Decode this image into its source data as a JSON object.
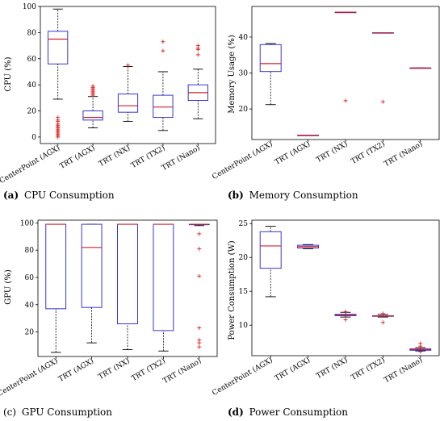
{
  "chart_data": [
    {
      "type": "box",
      "panel_letter": "(a)",
      "caption": "CPU Consumption",
      "ylabel": "CPU (%)",
      "ylim": [
        -5,
        100
      ],
      "yticks": [
        0,
        20,
        40,
        60,
        80,
        100
      ],
      "categories": [
        "CenterPoint (AGX)",
        "TRT (AGX)",
        "TRT (NX)",
        "TRT (TX2)",
        "TRT (Nano)"
      ],
      "boxes": [
        {
          "whislo": 29,
          "q1": 56,
          "med": 75,
          "q3": 81,
          "whishi": 98,
          "fliers": [
            0,
            1,
            2,
            3,
            4,
            5,
            6,
            7,
            8,
            9,
            10,
            12,
            13,
            15
          ]
        },
        {
          "whislo": 7,
          "q1": 13,
          "med": 15,
          "q3": 20,
          "whishi": 31,
          "fliers": [
            32,
            33,
            34,
            35,
            36,
            37,
            38,
            39
          ]
        },
        {
          "whislo": 12,
          "q1": 19,
          "med": 24,
          "q3": 33,
          "whishi": 54,
          "fliers": [
            55
          ]
        },
        {
          "whislo": 5,
          "q1": 15,
          "med": 23,
          "q3": 32,
          "whishi": 50,
          "fliers": [
            66,
            73
          ]
        },
        {
          "whislo": 14,
          "q1": 28,
          "med": 34,
          "q3": 40,
          "whishi": 52,
          "fliers": [
            63,
            67,
            68,
            70
          ]
        }
      ]
    },
    {
      "type": "box",
      "panel_letter": "(b)",
      "caption": "Memory Consumption",
      "ylabel": "Memory Usage (%)",
      "ylim": [
        11.5,
        48.5
      ],
      "yticks": [
        20,
        30,
        40
      ],
      "categories": [
        "CenterPoint (AGX)",
        "TRT (AGX)",
        "TRT (NX)",
        "TRT (TX2)",
        "TRT (Nano)"
      ],
      "boxes": [
        {
          "whislo": 21.2,
          "q1": 30.4,
          "med": 32.6,
          "q3": 37.9,
          "whishi": 38.2,
          "fliers": []
        },
        {
          "whislo": 12.7,
          "q1": 12.7,
          "med": 12.7,
          "q3": 12.7,
          "whishi": 12.7,
          "fliers": []
        },
        {
          "whislo": 46.9,
          "q1": 46.9,
          "med": 46.9,
          "q3": 46.9,
          "whishi": 46.9,
          "fliers": [
            22.3
          ]
        },
        {
          "whislo": 41.2,
          "q1": 41.2,
          "med": 41.2,
          "q3": 41.2,
          "whishi": 41.2,
          "fliers": [
            22.0
          ]
        },
        {
          "whislo": 31.4,
          "q1": 31.4,
          "med": 31.4,
          "q3": 31.4,
          "whishi": 31.4,
          "fliers": []
        }
      ]
    },
    {
      "type": "box",
      "panel_letter": "(c)",
      "caption": "GPU Consumption",
      "ylabel": "GPU (%)",
      "ylim": [
        2,
        102
      ],
      "yticks": [
        20,
        40,
        60,
        80,
        100
      ],
      "categories": [
        "CenterPoint (AGX)",
        "TRT (AGX)",
        "TRT (NX)",
        "TRT (TX2)",
        "TRT (Nano)"
      ],
      "boxes": [
        {
          "whislo": 5,
          "q1": 37,
          "med": 99,
          "q3": 99,
          "whishi": 99,
          "fliers": []
        },
        {
          "whislo": 12,
          "q1": 38,
          "med": 82,
          "q3": 99,
          "whishi": 99,
          "fliers": []
        },
        {
          "whislo": 7,
          "q1": 26,
          "med": 99,
          "q3": 99,
          "whishi": 99,
          "fliers": []
        },
        {
          "whislo": 6,
          "q1": 21,
          "med": 99,
          "q3": 99,
          "whishi": 99,
          "fliers": []
        },
        {
          "whislo": 98,
          "q1": 99,
          "med": 99,
          "q3": 99,
          "whishi": 99,
          "fliers": [
            92,
            81,
            61,
            23,
            14,
            12,
            9
          ]
        }
      ]
    },
    {
      "type": "box",
      "panel_letter": "(d)",
      "caption": "Power Consumption",
      "ylabel": "Power Consumption (W)",
      "ylim": [
        5.5,
        25.5
      ],
      "yticks": [
        10,
        15,
        20,
        25
      ],
      "categories": [
        "CenterPoint (AGX)",
        "TRT (AGX)",
        "TRT (NX)",
        "TRT (TX2)",
        "TRT (Nano)"
      ],
      "boxes": [
        {
          "whislo": 14.2,
          "q1": 18.4,
          "med": 21.7,
          "q3": 23.8,
          "whishi": 24.6,
          "fliers": []
        },
        {
          "whislo": 21.3,
          "q1": 21.4,
          "med": 21.6,
          "q3": 21.8,
          "whishi": 21.9,
          "fliers": []
        },
        {
          "whislo": 11.2,
          "q1": 11.4,
          "med": 11.5,
          "q3": 11.6,
          "whishi": 11.9,
          "fliers": [
            10.8,
            12.0
          ]
        },
        {
          "whislo": 11.2,
          "q1": 11.3,
          "med": 11.35,
          "q3": 11.4,
          "whishi": 11.6,
          "fliers": [
            10.4,
            11.7
          ]
        },
        {
          "whislo": 6.2,
          "q1": 6.3,
          "med": 6.4,
          "q3": 6.5,
          "whishi": 6.7,
          "fliers": [
            6.1,
            6.9,
            7.3
          ]
        }
      ]
    }
  ]
}
